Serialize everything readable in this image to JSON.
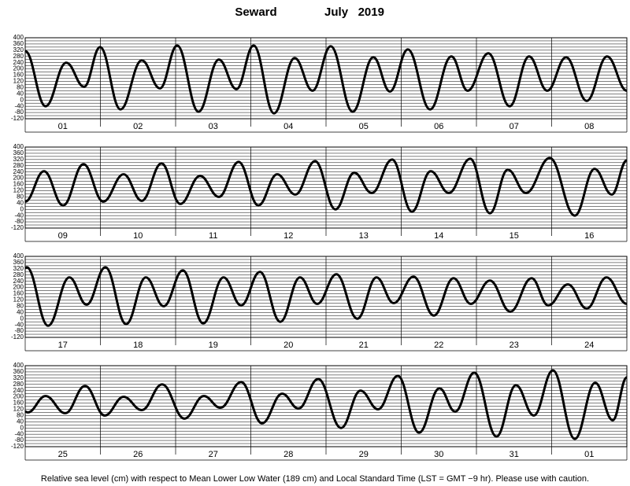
{
  "header": {
    "station": "Seward",
    "month": "July   2019"
  },
  "footer": "Relative sea level (cm) with respect to Mean Lower Low Water (189 cm) and Local Standard Time (LST = GMT −9 hr). Please use with caution.",
  "chart_data": [
    {
      "type": "line",
      "categories": [
        "01",
        "02",
        "03",
        "04",
        "05",
        "06",
        "07",
        "08"
      ],
      "x": [
        0,
        6.5,
        13.1,
        18.8,
        23.9,
        30.4,
        37.2,
        43.0,
        48.5,
        55.3,
        61.8,
        67.4,
        72.9,
        79.4,
        86,
        91.7,
        97.5,
        104.5,
        111.1,
        116.4,
        122.1,
        129.2,
        136,
        141.2,
        147.8,
        154.6,
        160.8,
        166.6,
        172.6,
        179.2,
        185.7,
        192
      ],
      "values": [
        315,
        -40,
        240,
        85,
        340,
        -60,
        255,
        75,
        350,
        -75,
        260,
        70,
        350,
        -85,
        270,
        60,
        345,
        -75,
        275,
        55,
        325,
        -60,
        280,
        60,
        300,
        -40,
        280,
        60,
        275,
        -5,
        280,
        60
      ],
      "color": "#000000",
      "xlim": [
        0,
        192
      ],
      "ylim": [
        -120,
        400
      ],
      "yticks": [
        400,
        360,
        320,
        280,
        240,
        200,
        160,
        120,
        80,
        40,
        0,
        -40,
        -80,
        -120
      ],
      "minor_yticks": [
        400,
        380,
        360,
        340,
        320,
        300,
        280,
        260,
        240,
        220,
        200,
        180,
        160,
        140,
        120,
        100,
        80,
        60,
        40,
        20,
        0,
        -20,
        -40,
        -60,
        -80,
        -100,
        -120
      ],
      "grid": true
    },
    {
      "type": "line",
      "categories": [
        "09",
        "10",
        "11",
        "12",
        "13",
        "14",
        "15",
        "16"
      ],
      "x": [
        0,
        6,
        12.1,
        18.6,
        24.9,
        31.4,
        37.2,
        43.5,
        49.5,
        55.8,
        61.8,
        68.1,
        74.4,
        80.4,
        86.2,
        92.5,
        99,
        105,
        110.6,
        117.1,
        123.4,
        129.4,
        135.2,
        142,
        148.3,
        154,
        159.8,
        167.4,
        175.4,
        181.7,
        187.2,
        192
      ],
      "values": [
        50,
        245,
        25,
        290,
        50,
        225,
        55,
        295,
        35,
        215,
        80,
        305,
        25,
        225,
        95,
        310,
        0,
        235,
        105,
        320,
        -15,
        245,
        105,
        325,
        -25,
        255,
        105,
        330,
        -40,
        260,
        95,
        315
      ],
      "color": "#000000",
      "xlim": [
        0,
        192
      ],
      "ylim": [
        -120,
        400
      ],
      "yticks": [
        400,
        360,
        320,
        280,
        240,
        200,
        160,
        120,
        80,
        40,
        0,
        -40,
        -80,
        -120
      ],
      "minor_yticks": [
        400,
        380,
        360,
        340,
        320,
        300,
        280,
        260,
        240,
        220,
        200,
        180,
        160,
        140,
        120,
        100,
        80,
        60,
        40,
        20,
        0,
        -20,
        -40,
        -60,
        -80,
        -100,
        -120
      ],
      "grid": true
    },
    {
      "type": "line",
      "categories": [
        "17",
        "18",
        "19",
        "20",
        "21",
        "22",
        "23",
        "24"
      ],
      "x": [
        0,
        0.5,
        7.3,
        14.1,
        19.6,
        25.6,
        32.2,
        38.5,
        44.2,
        50.3,
        56.8,
        63.3,
        68.9,
        74.9,
        81.4,
        87.7,
        93.2,
        99.3,
        106,
        112.1,
        117.6,
        123.9,
        130.4,
        136.7,
        142.2,
        148.3,
        154.8,
        161.6,
        166.9,
        173.2,
        179.2,
        185.5,
        192
      ],
      "values": [
        325,
        330,
        -45,
        265,
        90,
        330,
        -35,
        265,
        80,
        310,
        -30,
        265,
        85,
        300,
        -20,
        265,
        95,
        285,
        0,
        265,
        100,
        270,
        20,
        260,
        95,
        245,
        45,
        260,
        85,
        220,
        65,
        265,
        95
      ],
      "color": "#000000",
      "xlim": [
        0,
        192
      ],
      "ylim": [
        -120,
        400
      ],
      "yticks": [
        400,
        360,
        320,
        280,
        240,
        200,
        160,
        120,
        80,
        40,
        0,
        -40,
        -80,
        -120
      ],
      "minor_yticks": [
        400,
        380,
        360,
        340,
        320,
        300,
        280,
        260,
        240,
        220,
        200,
        180,
        160,
        140,
        120,
        100,
        80,
        60,
        40,
        20,
        0,
        -20,
        -40,
        -60,
        -80,
        -100,
        -120
      ],
      "grid": true
    },
    {
      "type": "line",
      "categories": [
        "25",
        "26",
        "27",
        "28",
        "29",
        "30",
        "31",
        "01"
      ],
      "x": [
        0,
        0.8,
        6.5,
        12.8,
        19.1,
        25.4,
        31.4,
        37.2,
        43.7,
        50.8,
        57,
        62.3,
        68.9,
        75.6,
        82,
        87.2,
        93.5,
        100.8,
        107,
        112.6,
        118.9,
        125.7,
        132.2,
        137.2,
        143.3,
        150.4,
        156.6,
        162.3,
        168.4,
        175.4,
        181.9,
        187.5,
        192
      ],
      "values": [
        105,
        100,
        205,
        95,
        270,
        80,
        200,
        115,
        280,
        60,
        205,
        130,
        295,
        30,
        220,
        125,
        315,
        0,
        240,
        120,
        335,
        -30,
        255,
        105,
        355,
        -55,
        275,
        80,
        370,
        -70,
        290,
        50,
        325
      ],
      "color": "#000000",
      "xlim": [
        0,
        192
      ],
      "ylim": [
        -120,
        400
      ],
      "yticks": [
        400,
        360,
        320,
        280,
        240,
        200,
        160,
        120,
        80,
        40,
        0,
        -40,
        -80,
        -120
      ],
      "minor_yticks": [
        400,
        380,
        360,
        340,
        320,
        300,
        280,
        260,
        240,
        220,
        200,
        180,
        160,
        140,
        120,
        100,
        80,
        60,
        40,
        20,
        0,
        -20,
        -40,
        -60,
        -80,
        -100,
        -120
      ],
      "grid": true
    }
  ]
}
